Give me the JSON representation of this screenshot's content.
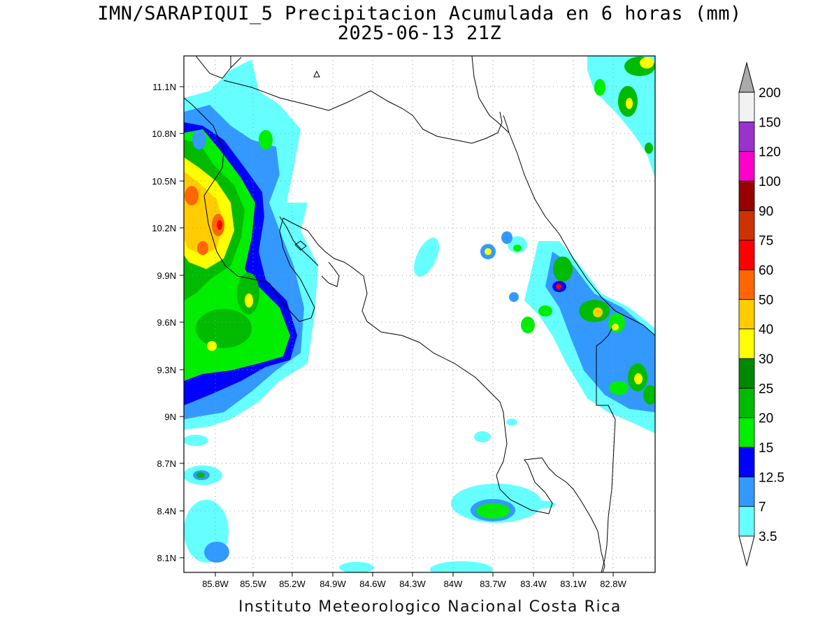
{
  "header": {
    "title_line1": "IMN/SARAPIQUI_5 Precipitacion Acumulada en 6 horas (mm)",
    "title_line2": "2025-06-13 21Z"
  },
  "footer": {
    "credit": "Instituto Meteorologico Nacional Costa Rica"
  },
  "map": {
    "region": "Costa Rica",
    "lon_range": [
      -86.0,
      -82.6
    ],
    "lat_range": [
      8.0,
      11.3
    ],
    "lon_ticks": [
      "85.8W",
      "85.5W",
      "85.2W",
      "84.9W",
      "84.6W",
      "84.3W",
      "84W",
      "83.7W",
      "83.4W",
      "83.1W",
      "82.8W"
    ],
    "lat_ticks": [
      "11.1N",
      "10.8N",
      "10.5N",
      "10.2N",
      "9.9N",
      "9.6N",
      "9.3N",
      "9N",
      "8.7N",
      "8.4N",
      "8.1N"
    ],
    "grid": "dotted"
  },
  "colorbar": {
    "levels": [
      "3.5",
      "7",
      "12.5",
      "15",
      "20",
      "25",
      "30",
      "40",
      "50",
      "60",
      "75",
      "90",
      "100",
      "120",
      "150",
      "200"
    ],
    "colors": [
      "#66ffff",
      "#3399ff",
      "#0000ff",
      "#00ee00",
      "#00bb00",
      "#008800",
      "#ffff00",
      "#ffcc00",
      "#ff6600",
      "#ff0000",
      "#cc3300",
      "#990000",
      "#ff00cc",
      "#9933cc",
      "#f2f2f2",
      "#aaaaaa"
    ]
  }
}
